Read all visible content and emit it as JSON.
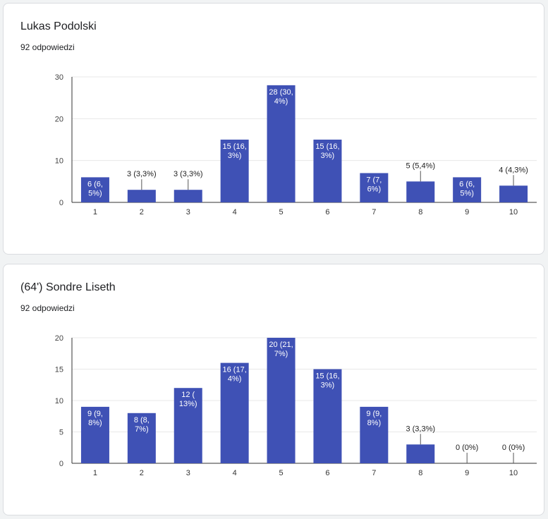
{
  "questions": [
    {
      "title": "Lukas Podolski",
      "responses": "92 odpowiedzi"
    },
    {
      "title": "(64') Sondre Liseth",
      "responses": "92 odpowiedzi"
    }
  ],
  "colors": {
    "bar": "#3f51b5",
    "grid": "#eeeeee",
    "axis": "#333333"
  },
  "chart_data": [
    {
      "type": "bar",
      "title": "Lukas Podolski",
      "categories": [
        "1",
        "2",
        "3",
        "4",
        "5",
        "6",
        "7",
        "8",
        "9",
        "10"
      ],
      "values": [
        6,
        3,
        3,
        15,
        28,
        15,
        7,
        5,
        6,
        4
      ],
      "labels": [
        [
          "6 (6,",
          "5%)"
        ],
        [
          "3 (3,3%)"
        ],
        [
          "3 (3,3%)"
        ],
        [
          "15 (16,",
          "3%)"
        ],
        [
          "28 (30,",
          "4%)"
        ],
        [
          "15 (16,",
          "3%)"
        ],
        [
          "7 (7,",
          "6%)"
        ],
        [
          "5 (5,4%)"
        ],
        [
          "6 (6,",
          "5%)"
        ],
        [
          "4 (4,3%)"
        ]
      ],
      "yticks": [
        0,
        10,
        20,
        30
      ],
      "ylim": [
        0,
        30
      ],
      "grid": true
    },
    {
      "type": "bar",
      "title": "(64') Sondre Liseth",
      "categories": [
        "1",
        "2",
        "3",
        "4",
        "5",
        "6",
        "7",
        "8",
        "9",
        "10"
      ],
      "values": [
        9,
        8,
        12,
        16,
        20,
        15,
        9,
        3,
        0,
        0
      ],
      "labels": [
        [
          "9 (9,",
          "8%)"
        ],
        [
          "8 (8,",
          "7%)"
        ],
        [
          "12 (",
          "13%)"
        ],
        [
          "16 (17,",
          "4%)"
        ],
        [
          "20 (21,",
          "7%)"
        ],
        [
          "15 (16,",
          "3%)"
        ],
        [
          "9 (9,",
          "8%)"
        ],
        [
          "3 (3,3%)"
        ],
        [
          "0 (0%)"
        ],
        [
          "0 (0%)"
        ]
      ],
      "yticks": [
        0,
        5,
        10,
        15,
        20
      ],
      "ylim": [
        0,
        20
      ],
      "grid": true
    }
  ]
}
